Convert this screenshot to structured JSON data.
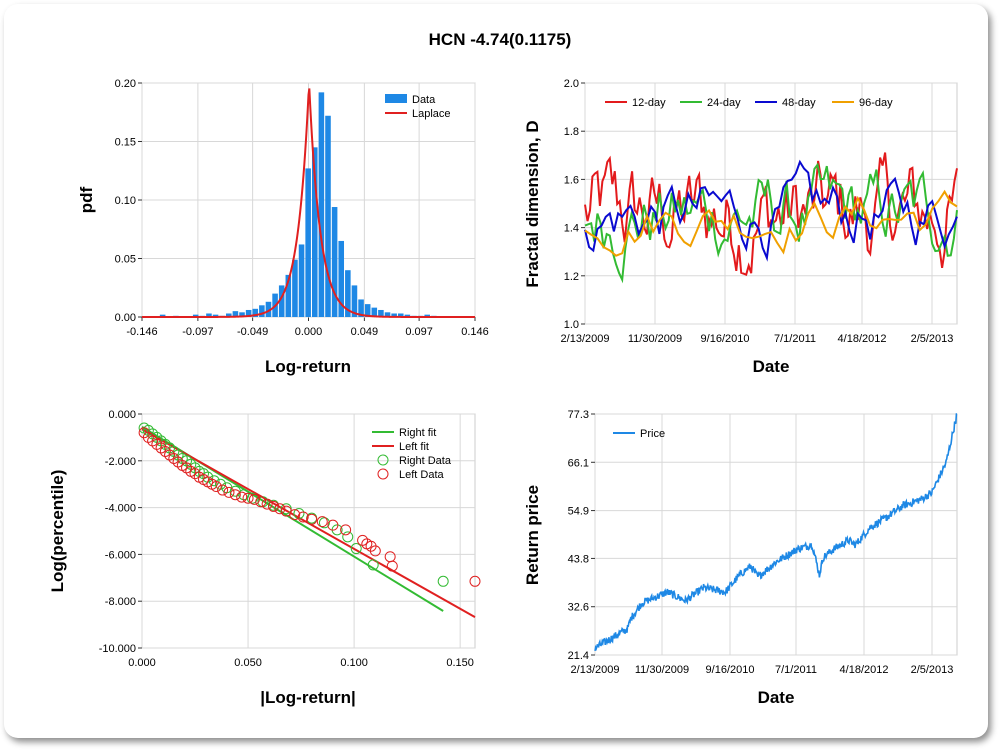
{
  "title": "HCN -4.74(0.1175)",
  "colors": {
    "data_blue": "#1e88e5",
    "laplace_red": "#e02020",
    "d12": "#e31a1c",
    "d24": "#33bb33",
    "d48": "#0a0ad0",
    "d96": "#f0a000",
    "right_green": "#33bb33",
    "left_red": "#e02020",
    "price": "#1e88e5"
  },
  "chart_data": [
    {
      "type": "bar",
      "id": "pdf",
      "xlabel": "Log-return",
      "ylabel": "pdf",
      "xlim": [
        -0.146,
        0.146
      ],
      "ylim": [
        0,
        0.2
      ],
      "x_ticks": [
        -0.146,
        -0.097,
        -0.049,
        0.0,
        0.049,
        0.097,
        0.146
      ],
      "x_tick_labels": [
        "-0.146",
        "-0.097",
        "-0.049",
        "0.000",
        "0.049",
        "0.097",
        "0.146"
      ],
      "y_ticks": [
        0,
        0.05,
        0.1,
        0.15,
        0.2
      ],
      "y_tick_labels": [
        "0.00",
        "0.05",
        "0.10",
        "0.15",
        "0.20"
      ],
      "legend": [
        "Data",
        "Laplace"
      ],
      "legend_position": "top-right",
      "bin_width": 0.0058,
      "bin_centers": [
        -0.1395,
        -0.1337,
        -0.1279,
        -0.1221,
        -0.1163,
        -0.1105,
        -0.1047,
        -0.0989,
        -0.0931,
        -0.0873,
        -0.0815,
        -0.0757,
        -0.0699,
        -0.0641,
        -0.0583,
        -0.0525,
        -0.0467,
        -0.0409,
        -0.0351,
        -0.0293,
        -0.0235,
        -0.0177,
        -0.0119,
        -0.0061,
        -0.0003,
        0.0055,
        0.0113,
        0.0171,
        0.0229,
        0.0287,
        0.0345,
        0.0403,
        0.0461,
        0.0519,
        0.0577,
        0.0635,
        0.0693,
        0.0751,
        0.0809,
        0.0867,
        0.0925,
        0.0983,
        0.1041,
        0.1099,
        0.1157,
        0.1215,
        0.1273,
        0.1331,
        0.1389
      ],
      "values": [
        0,
        0,
        0.002,
        0,
        0.001,
        0,
        0,
        0.002,
        0.001,
        0.003,
        0.002,
        0.001,
        0.003,
        0.005,
        0.004,
        0.006,
        0.007,
        0.01,
        0.013,
        0.02,
        0.027,
        0.036,
        0.049,
        0.062,
        0.127,
        0.145,
        0.192,
        0.172,
        0.094,
        0.065,
        0.04,
        0.027,
        0.015,
        0.011,
        0.008,
        0.006,
        0.004,
        0.003,
        0.003,
        0.002,
        0.001,
        0.001,
        0.002,
        0.001,
        0,
        0,
        0,
        0,
        0
      ],
      "laplace": {
        "mu": 0.0005,
        "b": 0.0025
      }
    },
    {
      "type": "line",
      "id": "fractal",
      "xlabel": "Date",
      "ylabel": "Fractal dimension, D",
      "ylim": [
        1.0,
        2.0
      ],
      "y_ticks": [
        1.0,
        1.2,
        1.4,
        1.6,
        1.8,
        2.0
      ],
      "y_tick_labels": [
        "1.0",
        "1.2",
        "1.4",
        "1.6",
        "1.8",
        "2.0"
      ],
      "x_tick_labels": [
        "2/13/2009",
        "11/30/2009",
        "9/16/2010",
        "7/1/2011",
        "4/18/2012",
        "2/5/2013"
      ],
      "legend_position": "top-left",
      "series": [
        {
          "name": "12-day",
          "color": "#e31a1c"
        },
        {
          "name": "24-day",
          "color": "#33bb33"
        },
        {
          "name": "48-day",
          "color": "#0a0ad0"
        },
        {
          "name": "96-day",
          "color": "#f0a000"
        }
      ]
    },
    {
      "type": "scatter",
      "id": "tail",
      "xlabel": "|Log-return|",
      "ylabel": "Log(percentile)",
      "xlim": [
        0,
        0.157
      ],
      "ylim": [
        -10,
        0
      ],
      "x_ticks": [
        0,
        0.05,
        0.1,
        0.15
      ],
      "x_tick_labels": [
        "0.000",
        "0.050",
        "0.100",
        "0.150"
      ],
      "y_ticks": [
        0,
        -2,
        -4,
        -6,
        -8,
        -10
      ],
      "y_tick_labels": [
        "0.000",
        "-2.000",
        "-4.000",
        "-6.000",
        "-8.000",
        "-10.000"
      ],
      "legend": [
        "Right fit",
        "Left fit",
        "Right Data",
        "Left Data"
      ],
      "legend_position": "top-right",
      "right_fit": {
        "x": [
          0,
          0.142
        ],
        "y": [
          -0.55,
          -8.42
        ]
      },
      "left_fit": {
        "x": [
          0,
          0.157
        ],
        "y": [
          -0.65,
          -8.68
        ]
      },
      "right_data": {
        "x": [
          0.001,
          0.003,
          0.005,
          0.007,
          0.009,
          0.011,
          0.013,
          0.015,
          0.017,
          0.019,
          0.021,
          0.023,
          0.025,
          0.027,
          0.029,
          0.031,
          0.034,
          0.037,
          0.04,
          0.044,
          0.048,
          0.052,
          0.057,
          0.062,
          0.068,
          0.074,
          0.08,
          0.086,
          0.092,
          0.097,
          0.101,
          0.109,
          0.142
        ],
        "y": [
          -0.6,
          -0.7,
          -0.85,
          -1.0,
          -1.15,
          -1.3,
          -1.45,
          -1.6,
          -1.75,
          -1.9,
          -2.0,
          -2.15,
          -2.3,
          -2.45,
          -2.55,
          -2.7,
          -2.85,
          -3.0,
          -3.15,
          -3.3,
          -3.45,
          -3.6,
          -3.75,
          -3.9,
          -4.05,
          -4.25,
          -4.45,
          -4.65,
          -4.95,
          -5.25,
          -5.75,
          -6.45,
          -7.15
        ]
      },
      "left_data": {
        "x": [
          0.001,
          0.003,
          0.005,
          0.007,
          0.009,
          0.011,
          0.013,
          0.015,
          0.017,
          0.019,
          0.021,
          0.023,
          0.025,
          0.027,
          0.029,
          0.031,
          0.033,
          0.035,
          0.038,
          0.041,
          0.044,
          0.047,
          0.05,
          0.053,
          0.056,
          0.059,
          0.062,
          0.065,
          0.068,
          0.072,
          0.076,
          0.08,
          0.085,
          0.09,
          0.096,
          0.104,
          0.106,
          0.108,
          0.11,
          0.117,
          0.118,
          0.157
        ],
        "y": [
          -0.8,
          -1.0,
          -1.15,
          -1.3,
          -1.45,
          -1.6,
          -1.75,
          -1.9,
          -2.05,
          -2.2,
          -2.3,
          -2.45,
          -2.55,
          -2.7,
          -2.8,
          -2.9,
          -3.0,
          -3.1,
          -3.25,
          -3.35,
          -3.45,
          -3.55,
          -3.6,
          -3.65,
          -3.75,
          -3.85,
          -3.95,
          -4.05,
          -4.15,
          -4.3,
          -4.4,
          -4.5,
          -4.6,
          -4.75,
          -4.95,
          -5.4,
          -5.55,
          -5.65,
          -5.85,
          -6.1,
          -6.5,
          -7.15
        ]
      }
    },
    {
      "type": "line",
      "id": "price",
      "xlabel": "Date",
      "ylabel": "Return price",
      "ylim": [
        21.4,
        77.3
      ],
      "y_ticks": [
        21.4,
        32.6,
        43.8,
        54.9,
        66.1,
        77.3
      ],
      "y_tick_labels": [
        "21.4",
        "32.6",
        "43.8",
        "54.9",
        "66.1",
        "77.3"
      ],
      "x_tick_labels": [
        "2/13/2009",
        "11/30/2009",
        "9/16/2010",
        "7/1/2011",
        "4/18/2012",
        "2/5/2013"
      ],
      "legend": [
        "Price"
      ],
      "legend_position": "top-left",
      "series": [
        {
          "name": "Price",
          "color": "#1e88e5"
        }
      ]
    }
  ]
}
